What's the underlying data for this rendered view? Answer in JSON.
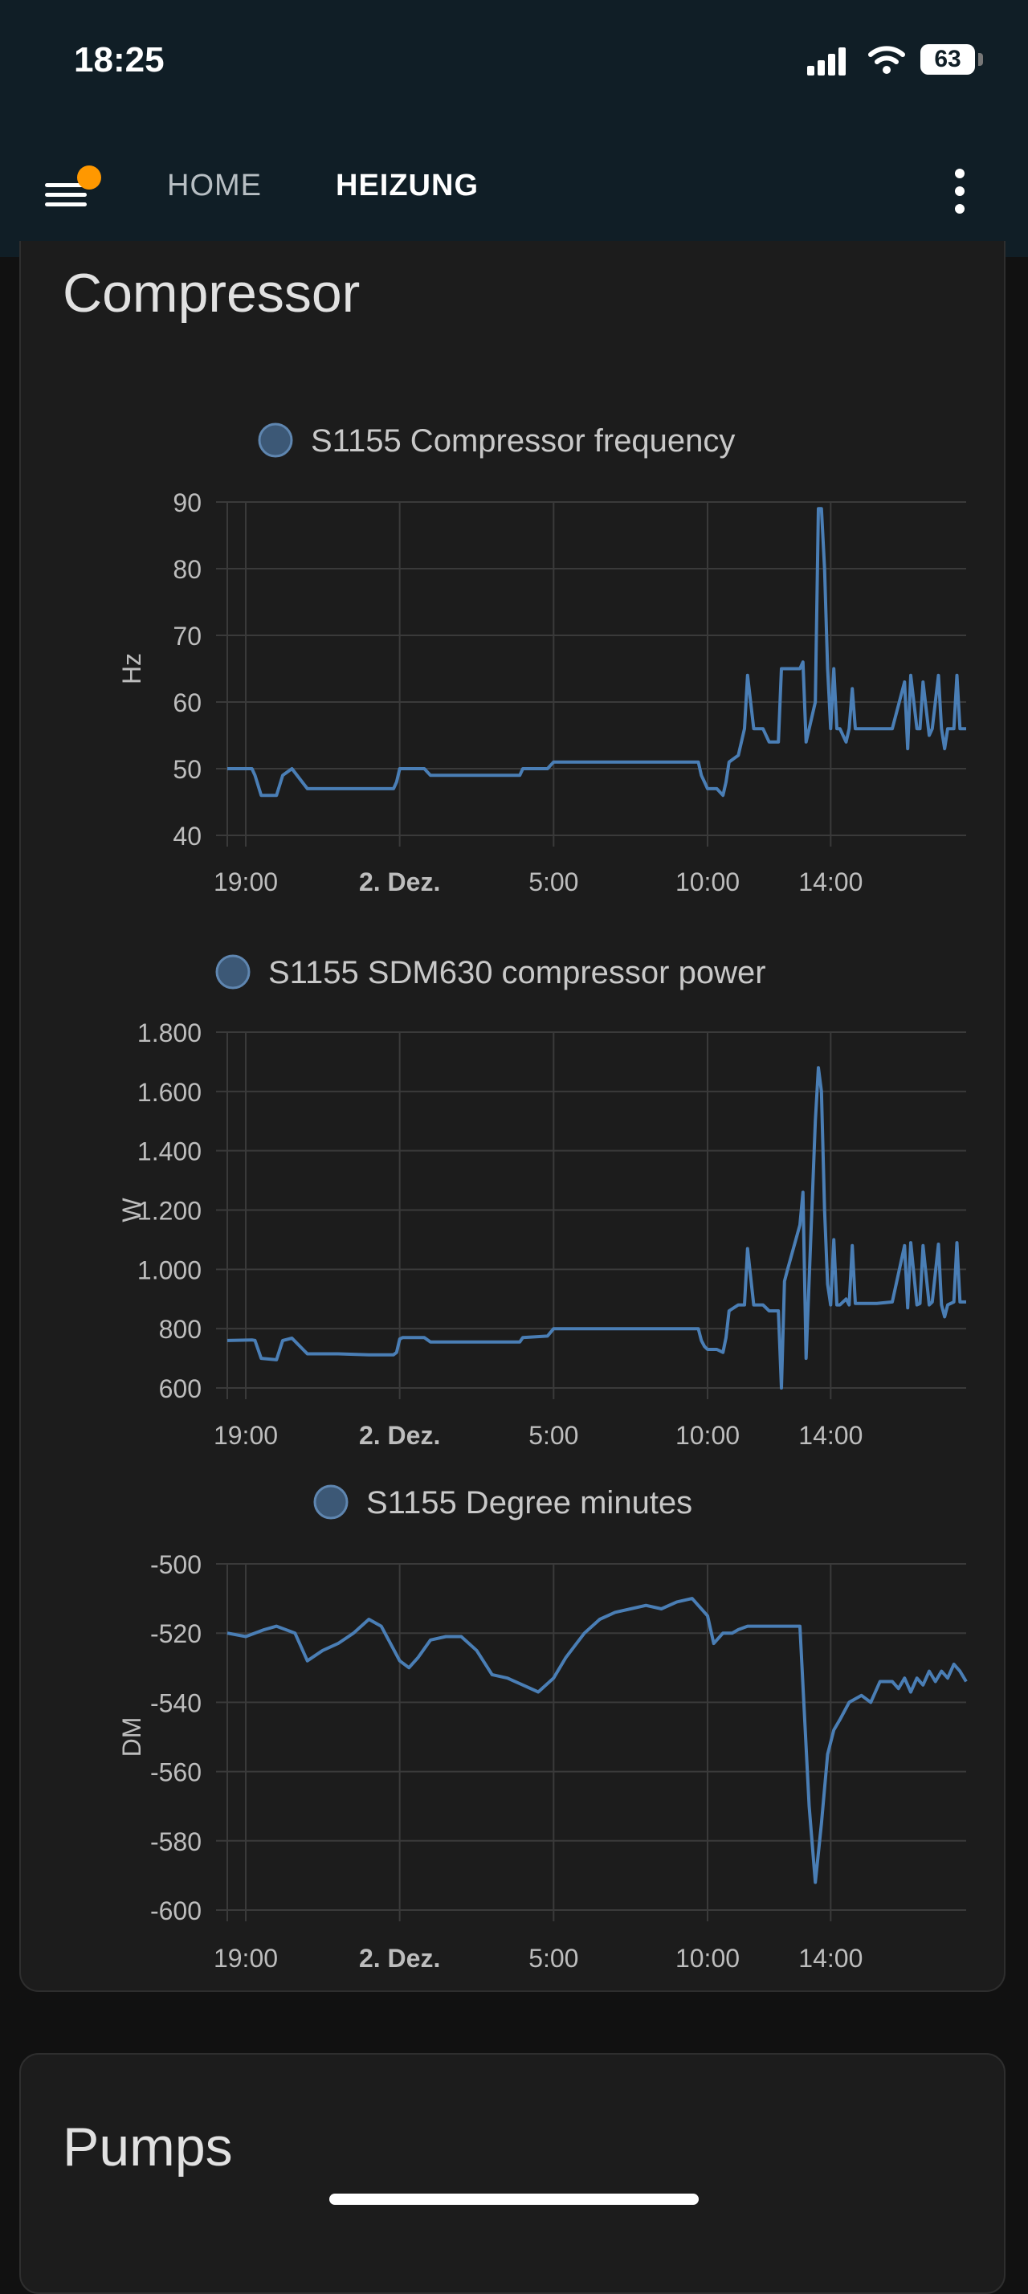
{
  "status_bar": {
    "time": "18:25",
    "battery": "63",
    "icons": [
      "signal-icon",
      "wifi-icon",
      "battery-icon"
    ]
  },
  "app_bar": {
    "tabs": [
      {
        "label": "HOME"
      },
      {
        "label": "HEIZUNG"
      }
    ],
    "active_tab": "HEIZUNG",
    "icons": [
      "menu-icon",
      "more-vert-icon"
    ],
    "colors": {
      "background": "#101e26",
      "notification": "#ff9800"
    }
  },
  "sections": {
    "compressor_title": "Compressor",
    "pumps_title": "Pumps"
  },
  "chart_data": [
    {
      "type": "line",
      "legend": "S1155 Compressor frequency",
      "ylabel": "Hz",
      "ylim": [
        40,
        90
      ],
      "yticks": [
        "90",
        "80",
        "70",
        "60",
        "50",
        "40"
      ],
      "yticks_values": [
        90,
        80,
        70,
        60,
        50,
        40
      ],
      "xticks": [
        "19:00",
        "2. Dez.",
        "5:00",
        "10:00",
        "14:00"
      ],
      "xticks_hours": [
        19,
        24,
        29,
        34,
        38
      ],
      "xlim_hours": [
        18.4,
        42.4
      ],
      "grid": true,
      "color": "#4a7eb5",
      "series": {
        "x": [
          18.4,
          19.2,
          19.3,
          19.5,
          20.0,
          20.2,
          20.5,
          21.0,
          21.2,
          22.0,
          23.0,
          23.8,
          23.9,
          24.0,
          24.1,
          24.8,
          25.0,
          26.0,
          27.0,
          27.9,
          28.0,
          28.8,
          29.0,
          30.0,
          31.0,
          32.0,
          33.0,
          33.7,
          33.8,
          33.9,
          34.0,
          34.3,
          34.5,
          34.6,
          34.7,
          35.0,
          35.2,
          35.3,
          35.5,
          35.6,
          35.8,
          36.0,
          36.3,
          36.4,
          36.5,
          36.6,
          37.0,
          37.1,
          37.2,
          37.5,
          37.6,
          37.7,
          37.8,
          37.9,
          38.0,
          38.1,
          38.2,
          38.3,
          38.5,
          38.6,
          38.7,
          38.8,
          39.0,
          39.5,
          40.0,
          40.4,
          40.5,
          40.6,
          40.8,
          40.9,
          41.0,
          41.2,
          41.3,
          41.5,
          41.6,
          41.7,
          41.8,
          42.0,
          42.1,
          42.2,
          42.4
        ],
        "y": [
          50,
          50,
          49,
          46,
          46,
          49,
          50,
          47,
          47,
          47,
          47,
          47,
          48,
          50,
          50,
          50,
          49,
          49,
          49,
          49,
          50,
          50,
          51,
          51,
          51,
          51,
          51,
          51,
          49,
          48,
          47,
          47,
          46,
          48,
          51,
          52,
          56,
          64,
          56,
          56,
          56,
          54,
          54,
          65,
          65,
          65,
          65,
          66,
          54,
          60,
          89,
          89,
          80,
          65,
          56,
          65,
          56,
          56,
          54,
          56,
          62,
          56,
          56,
          56,
          56,
          63,
          53,
          64,
          56,
          56,
          63,
          55,
          56,
          64,
          56,
          53,
          56,
          56,
          64,
          56,
          56
        ]
      }
    },
    {
      "type": "line",
      "legend": "S1155 SDM630 compressor power",
      "ylabel": "W",
      "ylim": [
        600,
        1800
      ],
      "yticks": [
        "1.800",
        "1.600",
        "1.400",
        "1.200",
        "1.000",
        "800",
        "600"
      ],
      "yticks_values": [
        1800,
        1600,
        1400,
        1200,
        1000,
        800,
        600
      ],
      "xticks": [
        "19:00",
        "2. Dez.",
        "5:00",
        "10:00",
        "14:00"
      ],
      "xticks_hours": [
        19,
        24,
        29,
        34,
        38
      ],
      "xlim_hours": [
        18.4,
        42.4
      ],
      "grid": true,
      "color": "#4a7eb5",
      "series": {
        "x": [
          18.4,
          19.2,
          19.3,
          19.5,
          20.0,
          20.2,
          20.5,
          21.0,
          21.2,
          22.0,
          23.0,
          23.8,
          23.9,
          24.0,
          24.1,
          24.8,
          25.0,
          26.0,
          27.0,
          27.9,
          28.0,
          28.8,
          29.0,
          30.0,
          31.0,
          32.0,
          33.0,
          33.7,
          33.8,
          33.9,
          34.0,
          34.3,
          34.5,
          34.6,
          34.7,
          35.0,
          35.2,
          35.3,
          35.5,
          35.6,
          35.8,
          36.0,
          36.3,
          36.4,
          36.5,
          36.6,
          37.0,
          37.1,
          37.2,
          37.5,
          37.6,
          37.7,
          37.8,
          37.9,
          38.0,
          38.1,
          38.2,
          38.3,
          38.5,
          38.6,
          38.7,
          38.8,
          39.0,
          39.5,
          40.0,
          40.4,
          40.5,
          40.6,
          40.8,
          40.9,
          41.0,
          41.2,
          41.3,
          41.5,
          41.6,
          41.7,
          41.8,
          42.0,
          42.1,
          42.2,
          42.4
        ],
        "y": [
          760,
          762,
          760,
          700,
          695,
          760,
          768,
          715,
          715,
          715,
          712,
          712,
          720,
          765,
          770,
          770,
          755,
          755,
          755,
          755,
          770,
          775,
          800,
          800,
          800,
          800,
          800,
          800,
          760,
          740,
          730,
          730,
          720,
          770,
          860,
          880,
          880,
          1070,
          880,
          880,
          880,
          860,
          860,
          600,
          960,
          1000,
          1150,
          1260,
          700,
          1500,
          1680,
          1600,
          1200,
          950,
          880,
          1100,
          880,
          880,
          900,
          880,
          1080,
          885,
          885,
          885,
          890,
          1080,
          870,
          1090,
          880,
          885,
          1080,
          880,
          890,
          1085,
          880,
          840,
          880,
          890,
          1090,
          890,
          890
        ]
      }
    },
    {
      "type": "line",
      "legend": "S1155 Degree minutes",
      "ylabel": "DM",
      "ylim": [
        -600,
        -500
      ],
      "yticks": [
        "-500",
        "-520",
        "-540",
        "-560",
        "-580",
        "-600"
      ],
      "yticks_values": [
        -500,
        -520,
        -540,
        -560,
        -580,
        -600
      ],
      "xticks": [
        "19:00",
        "2. Dez.",
        "5:00",
        "10:00",
        "14:00"
      ],
      "xticks_hours": [
        19,
        24,
        29,
        34,
        38
      ],
      "xlim_hours": [
        18.4,
        42.4
      ],
      "grid": true,
      "color": "#4a7eb5",
      "series": {
        "x": [
          18.4,
          19.0,
          19.6,
          20.0,
          20.6,
          21.0,
          21.5,
          22.0,
          22.5,
          23.0,
          23.4,
          24.0,
          24.3,
          24.6,
          25.0,
          25.5,
          26.0,
          26.5,
          27.0,
          27.5,
          28.0,
          28.5,
          29.0,
          29.4,
          30.0,
          30.5,
          31.0,
          31.5,
          32.0,
          32.5,
          33.0,
          33.5,
          34.0,
          34.2,
          34.5,
          34.8,
          35.0,
          35.3,
          35.6,
          36.0,
          36.3,
          37.0,
          37.3,
          37.5,
          37.7,
          37.9,
          38.1,
          38.3,
          38.6,
          39.0,
          39.3,
          39.6,
          40.0,
          40.2,
          40.4,
          40.6,
          40.8,
          41.0,
          41.2,
          41.4,
          41.6,
          41.8,
          42.0,
          42.2,
          42.4
        ],
        "y": [
          -520,
          -521,
          -519,
          -518,
          -520,
          -528,
          -525,
          -523,
          -520,
          -516,
          -518,
          -528,
          -530,
          -527,
          -522,
          -521,
          -521,
          -525,
          -532,
          -533,
          -535,
          -537,
          -533,
          -527,
          -520,
          -516,
          -514,
          -513,
          -512,
          -513,
          -511,
          -510,
          -515,
          -523,
          -520,
          -520,
          -519,
          -518,
          -518,
          -518,
          -518,
          -518,
          -570,
          -592,
          -575,
          -555,
          -548,
          -545,
          -540,
          -538,
          -540,
          -534,
          -534,
          -536,
          -533,
          -537,
          -533,
          -535,
          -531,
          -534,
          -531,
          -533,
          -529,
          -531,
          -534
        ]
      }
    }
  ]
}
